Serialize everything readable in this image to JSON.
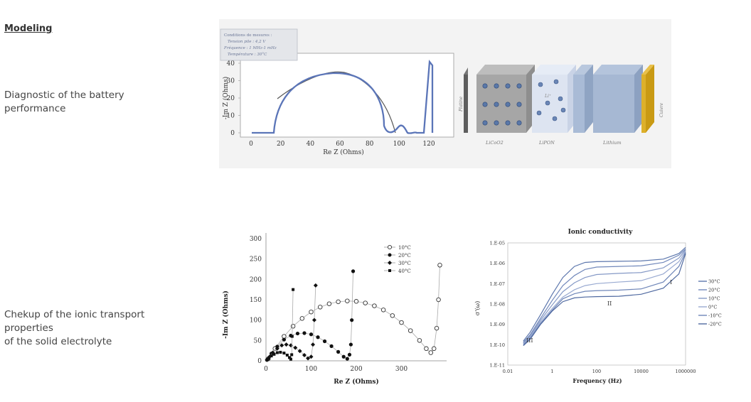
{
  "section_title": "Modeling",
  "captions": {
    "diag": [
      "Diagnostic of the battery",
      "performance"
    ],
    "ionic": [
      "Chekup of the ionic transport",
      "properties",
      "of the solid electrolyte"
    ]
  },
  "figure1": {
    "box_lines": [
      "Conditions de mesures :",
      "Tension pile : 4,2 V",
      "Fréquence : 1 MHz-1 mHz",
      "Température : 30°C"
    ],
    "ylabel": "-Im Z (Ohms)",
    "xlabel": "Re Z (Ohms)",
    "xticks": [
      "0",
      "20",
      "40",
      "60",
      "80",
      "100",
      "120"
    ],
    "yticks": [
      "0",
      "10",
      "20",
      "30",
      "40"
    ],
    "layers": [
      "Platine",
      "LiCoO2",
      "LiPON",
      "Lithium",
      "Cuivre"
    ],
    "ion_label": "Li⁺"
  },
  "chart_data": [
    {
      "type": "scatter",
      "title": "",
      "xlabel": "Re Z (Ohms)",
      "ylabel": "-Im Z (Ohms)",
      "xlim": [
        0,
        400
      ],
      "ylim": [
        0,
        300
      ],
      "xticks": [
        "0",
        "100",
        "200",
        "300"
      ],
      "yticks": [
        "0",
        "50",
        "100",
        "150",
        "200",
        "250",
        "300"
      ],
      "legend_position": "top-right",
      "series": [
        {
          "name": "10°C",
          "marker": "open-circle",
          "x": [
            5,
            20,
            40,
            60,
            80,
            100,
            120,
            140,
            160,
            180,
            200,
            220,
            240,
            260,
            280,
            300,
            320,
            340,
            355,
            365,
            372,
            378,
            382,
            385
          ],
          "y": [
            5,
            30,
            60,
            85,
            104,
            120,
            132,
            140,
            145,
            147,
            146,
            142,
            135,
            125,
            111,
            94,
            74,
            50,
            30,
            20,
            30,
            80,
            150,
            235
          ]
        },
        {
          "name": "20°C",
          "marker": "filled-circle",
          "x": [
            3,
            12,
            25,
            40,
            55,
            70,
            85,
            100,
            115,
            130,
            145,
            160,
            172,
            180,
            185,
            188,
            190,
            193
          ],
          "y": [
            3,
            18,
            35,
            52,
            62,
            67,
            68,
            65,
            58,
            48,
            36,
            22,
            10,
            5,
            15,
            40,
            100,
            220
          ]
        },
        {
          "name": "30°C",
          "marker": "filled-diamond",
          "x": [
            2,
            8,
            15,
            25,
            35,
            45,
            55,
            65,
            75,
            85,
            93,
            100,
            104,
            107,
            110
          ],
          "y": [
            2,
            10,
            20,
            30,
            38,
            40,
            38,
            32,
            24,
            14,
            6,
            10,
            40,
            100,
            185
          ]
        },
        {
          "name": "40°C",
          "marker": "filled-square",
          "x": [
            2,
            6,
            12,
            18,
            25,
            32,
            40,
            47,
            52,
            55,
            57,
            58,
            60
          ],
          "y": [
            2,
            6,
            12,
            16,
            20,
            21,
            19,
            14,
            8,
            4,
            15,
            60,
            175
          ]
        }
      ]
    },
    {
      "type": "line",
      "title": "Ionic conductivity",
      "xlabel": "Frequency (Hz)",
      "ylabel": "σ'(ω)",
      "xscale": "log",
      "yscale": "log",
      "xticks": [
        "0.01",
        "1",
        "100",
        "10000",
        "1000000"
      ],
      "yticks": [
        "1.E-11",
        "1.E-10",
        "1.E-09",
        "1.E-08",
        "1.E-07",
        "1.E-06",
        "1.E-05"
      ],
      "legend_position": "right",
      "annotations": [
        "I",
        "II",
        "III"
      ],
      "series": [
        {
          "name": "30°C",
          "x": [
            0.05,
            0.1,
            0.3,
            1,
            3,
            10,
            30,
            100,
            1000,
            10000,
            100000,
            500000,
            1000000
          ],
          "y": [
            1.5e-10,
            4e-10,
            3e-09,
            3e-08,
            2e-07,
            7e-07,
            1.1e-06,
            1.2e-06,
            1.25e-06,
            1.3e-06,
            1.6e-06,
            3e-06,
            6e-06
          ]
        },
        {
          "name": "20°C",
          "x": [
            0.05,
            0.1,
            0.3,
            1,
            3,
            10,
            30,
            100,
            1000,
            10000,
            100000,
            500000,
            1000000
          ],
          "y": [
            1.3e-10,
            3e-10,
            2e-09,
            1.5e-08,
            8e-08,
            2.5e-07,
            5e-07,
            6.5e-07,
            7e-07,
            7.5e-07,
            1.1e-06,
            2.5e-06,
            5e-06
          ]
        },
        {
          "name": "10°C",
          "x": [
            0.05,
            0.1,
            0.3,
            1,
            3,
            10,
            30,
            100,
            1000,
            10000,
            100000,
            500000,
            1000000
          ],
          "y": [
            1.2e-10,
            2.6e-10,
            1.6e-09,
            9e-09,
            4e-08,
            1.1e-07,
            2e-07,
            2.8e-07,
            3.2e-07,
            3.5e-07,
            6e-07,
            1.8e-06,
            4.5e-06
          ]
        },
        {
          "name": "0°C",
          "x": [
            0.05,
            0.1,
            0.3,
            1,
            3,
            10,
            30,
            100,
            1000,
            10000,
            100000,
            500000,
            1000000
          ],
          "y": [
            1.1e-10,
            2.3e-10,
            1.3e-09,
            6e-09,
            2.2e-08,
            5e-08,
            8e-08,
            1e-07,
            1.2e-07,
            1.4e-07,
            3e-07,
            1.2e-06,
            4e-06
          ]
        },
        {
          "name": "-10°C",
          "x": [
            0.05,
            0.1,
            0.3,
            1,
            3,
            10,
            30,
            100,
            1000,
            10000,
            100000,
            500000,
            1000000
          ],
          "y": [
            1e-10,
            2e-10,
            1.1e-09,
            5e-09,
            1.8e-08,
            3.2e-08,
            4.2e-08,
            4.5e-08,
            4.8e-08,
            5.5e-08,
            1.2e-07,
            7e-07,
            3.5e-06
          ]
        },
        {
          "name": "-20°C",
          "x": [
            0.05,
            0.1,
            0.3,
            1,
            3,
            10,
            30,
            100,
            1000,
            10000,
            100000,
            500000,
            1000000
          ],
          "y": [
            9e-11,
            1.8e-10,
            1e-09,
            4.5e-09,
            1.3e-08,
            2e-08,
            2.2e-08,
            2.3e-08,
            2.4e-08,
            3e-08,
            6e-08,
            3e-07,
            3e-06
          ]
        }
      ]
    }
  ]
}
